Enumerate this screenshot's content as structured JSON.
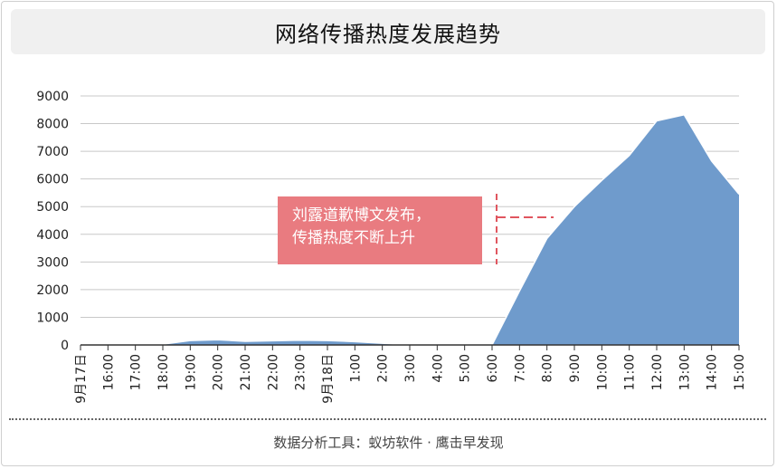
{
  "page": {
    "title": "网络传播热度发展趋势",
    "footer": "数据分析工具：蚁坊软件 · 鹰击早发现"
  },
  "annotation": {
    "line1": "刘露道歉博文发布，",
    "line2": "传播热度不断上升"
  },
  "colors": {
    "area_fill": "#6f9bcc",
    "area_stroke": "#ffffff",
    "annotation_bg": "#e97b80",
    "annotation_marker": "#e0565f",
    "grid": "#c8c8c8",
    "axis": "#333333"
  },
  "chart_data": {
    "type": "area",
    "title": "网络传播热度发展趋势",
    "xlabel": "",
    "ylabel": "",
    "ylim": [
      0,
      9000
    ],
    "yticks": [
      0,
      1000,
      2000,
      3000,
      4000,
      5000,
      6000,
      7000,
      8000,
      9000
    ],
    "grid": true,
    "categories": [
      "9月17日",
      "16:00",
      "17:00",
      "18:00",
      "19:00",
      "20:00",
      "21:00",
      "22:00",
      "23:00",
      "9月18日",
      "1:00",
      "2:00",
      "3:00",
      "4:00",
      "5:00",
      "6:00",
      "7:00",
      "8:00",
      "9:00",
      "10:00",
      "11:00",
      "12:00",
      "13:00",
      "14:00",
      "15:00"
    ],
    "values": [
      0,
      10,
      15,
      30,
      160,
      190,
      130,
      150,
      170,
      160,
      120,
      60,
      10,
      0,
      0,
      0,
      1950,
      3850,
      5000,
      5950,
      6850,
      8100,
      8320,
      6650,
      5450
    ]
  }
}
